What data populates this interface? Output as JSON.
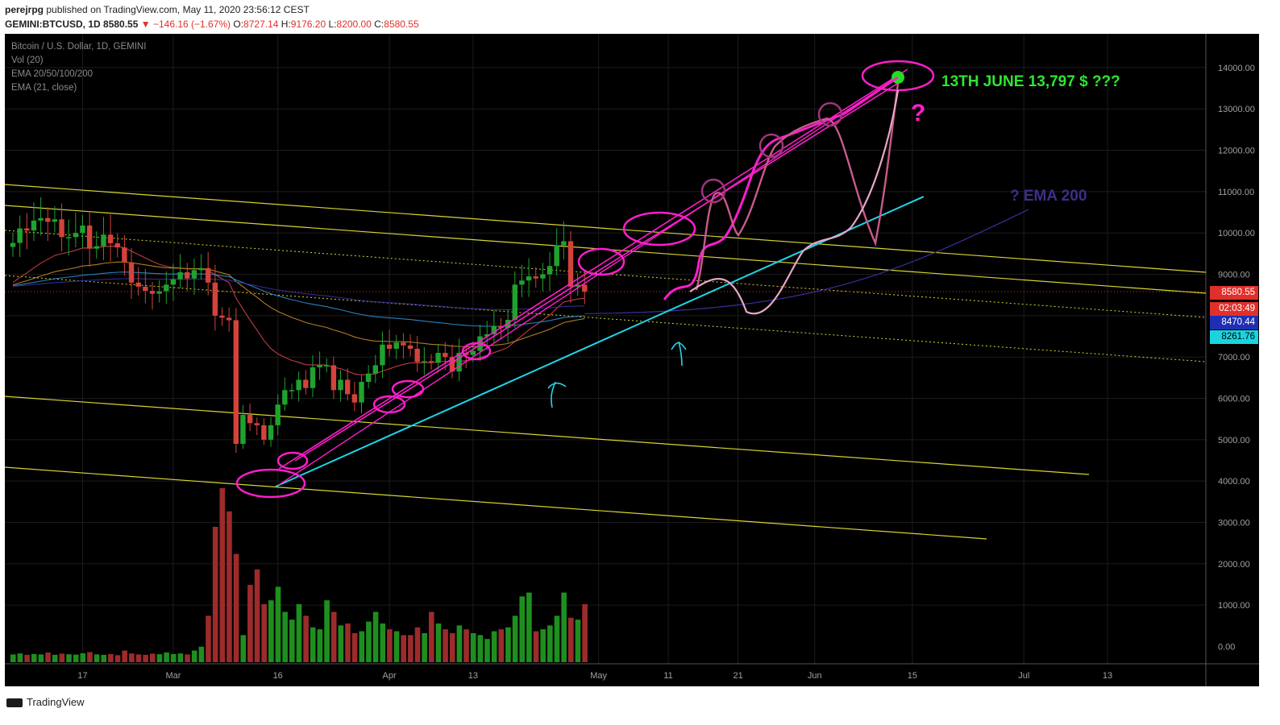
{
  "header": {
    "author": "perejrpg",
    "published": "published on TradingView.com, May 11, 2020 23:56:12 CEST",
    "symbol": "GEMINI:BTCUSD, 1D",
    "last": "8580.55",
    "change": "▼ −146.16 (−1.67%)",
    "o_label": "O:",
    "o": "8727.14",
    "h_label": "H:",
    "h": "9176.20",
    "l_label": "L:",
    "l": "8200.00",
    "c_label": "C:",
    "c": "8580.55"
  },
  "legend": {
    "title": "Bitcoin / U.S. Dollar, 1D, GEMINI",
    "vol": "Vol (20)",
    "ema1": "EMA 20/50/100/200",
    "ema2": "EMA (21, close)"
  },
  "annotations": {
    "target": "13TH JUNE 13,797 $ ???",
    "ema200": "? EMA 200",
    "question": "?"
  },
  "price_tags": [
    {
      "text": "8580.55",
      "bg": "#e0302b",
      "fg": "#ffffff"
    },
    {
      "text": "02:03:49",
      "bg": "#e0302b",
      "fg": "#ffffff"
    },
    {
      "text": "8470.44",
      "bg": "#1e2fb5",
      "fg": "#ffffff"
    },
    {
      "text": "8261.76",
      "bg": "#19d4e0",
      "fg": "#000000"
    }
  ],
  "footer": {
    "brand": "TradingView"
  },
  "colors": {
    "up": "#1fa32e",
    "down": "#d3433b",
    "vol_up": "#1e8f1e",
    "vol_down": "#9c2b2b",
    "magenta": "#ff1ecc",
    "cyan": "#1ed6e8",
    "yellow": "#d8d432",
    "green_text": "#2ee62e",
    "ema_text": "#3c2f8a",
    "axis_text": "#a0a0a0"
  },
  "chart_data": {
    "type": "candlestick",
    "y_ticks": [
      0,
      1000,
      2000,
      3000,
      4000,
      5000,
      6000,
      7000,
      8000,
      9000,
      10000,
      11000,
      12000,
      13000,
      14000
    ],
    "y_tick_labels": [
      "0.00",
      "1000.00",
      "2000.00",
      "3000.00",
      "4000.00",
      "5000.00",
      "6000.00",
      "7000.00",
      "8000.00",
      "9000.00",
      "10000.00",
      "11000.00",
      "12000.00",
      "13000.00",
      "14000.00"
    ],
    "x_labels": [
      {
        "date": "2020-02-17",
        "text": "17"
      },
      {
        "date": "2020-03-01",
        "text": "Mar"
      },
      {
        "date": "2020-03-16",
        "text": "16"
      },
      {
        "date": "2020-04-01",
        "text": "Apr"
      },
      {
        "date": "2020-04-13",
        "text": "13"
      },
      {
        "date": "2020-05-01",
        "text": "May"
      },
      {
        "date": "2020-05-11",
        "text": "11"
      },
      {
        "date": "2020-05-21",
        "text": "21"
      },
      {
        "date": "2020-06-01",
        "text": "Jun"
      },
      {
        "date": "2020-06-15",
        "text": "15"
      },
      {
        "date": "2020-07-01",
        "text": "Jul"
      },
      {
        "date": "2020-07-13",
        "text": "13"
      }
    ],
    "series": [
      {
        "name": "BTCUSD close (approx.)",
        "start_date": "2020-02-07",
        "close": [
          9760,
          10110,
          10060,
          10300,
          10360,
          10270,
          10330,
          9900,
          9900,
          10000,
          10180,
          9620,
          9680,
          9960,
          9750,
          9650,
          9290,
          8800,
          8700,
          8600,
          8530,
          8590,
          8750,
          8880,
          9050,
          8900,
          9100,
          9150,
          8800,
          8000,
          7950,
          7890,
          4900,
          5600,
          5400,
          5350,
          5000,
          5350,
          5850,
          6200,
          6200,
          6450,
          6250,
          6750,
          6800,
          6800,
          6200,
          6450,
          6100,
          5900,
          6400,
          6600,
          6800,
          7300,
          7200,
          7350,
          7280,
          7200,
          6880,
          6900,
          6860,
          7100,
          7000,
          6650,
          7100,
          7050,
          7150,
          7500,
          7550,
          7750,
          7700,
          7900,
          8750,
          8850,
          8950,
          8900,
          9000,
          9200,
          9700,
          9800,
          8700,
          8750,
          8580
        ]
      }
    ],
    "volume_note": "Volume bars shown below price; peak around mid-March 2020"
  }
}
